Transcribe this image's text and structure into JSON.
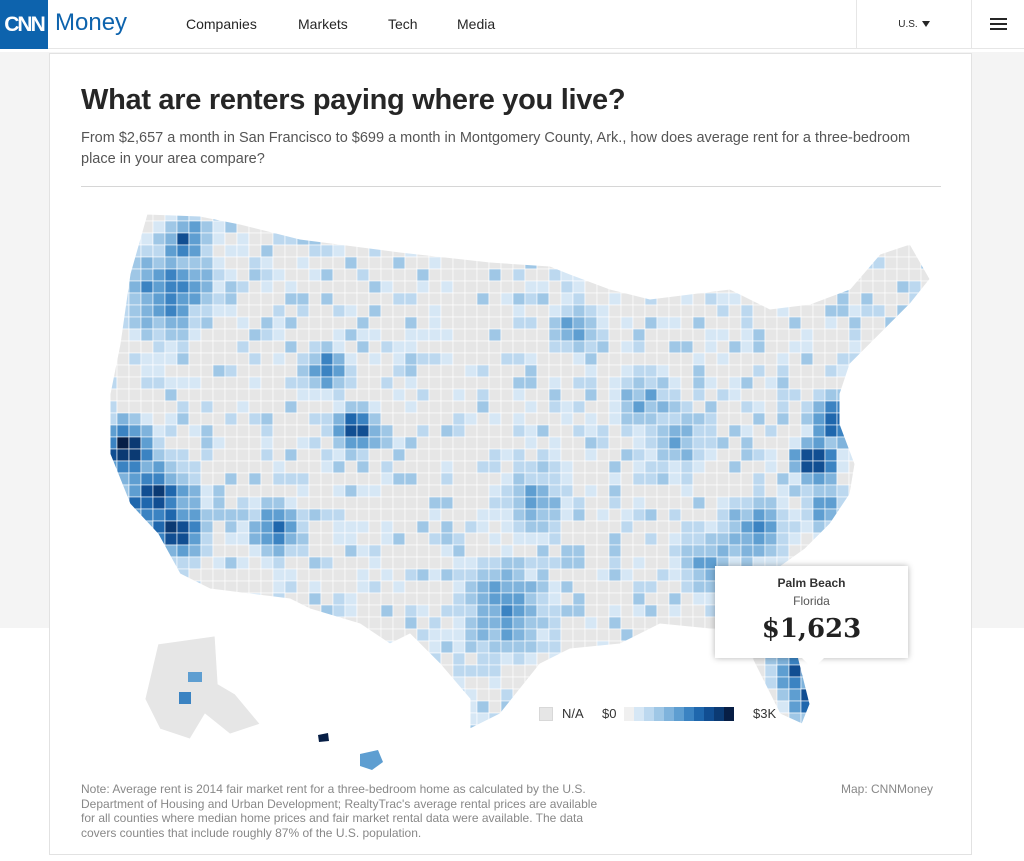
{
  "header": {
    "logo_text": "CNN",
    "brand_word": "Money",
    "nav": [
      "Companies",
      "Markets",
      "Tech",
      "Media"
    ],
    "edition": "U.S.",
    "colors": {
      "brand": "#0d63ad"
    }
  },
  "article": {
    "title": "What are renters paying where you live?",
    "subtitle": "From $2,657 a month in San Francisco to $699 a month in Montgomery County, Ark., how does average rent for a three-bedroom place in your area compare?",
    "note": "Note: Average rent is 2014 fair market rent for a three-bedroom home as calculated by the U.S. Department of Housing and Urban Development; RealtyTrac's average rental prices are available for all counties where median home prices and fair market rental data were available. The data covers counties that include roughly 87% of the U.S. population.",
    "credit": "Map: CNNMoney"
  },
  "map": {
    "type": "choropleth",
    "subject": "U.S. counties, 2014 fair market rent for a three-bedroom home",
    "legend": {
      "na_label": "N/A",
      "low_label": "$0",
      "high_label": "$3K",
      "colors": [
        "#f0f0f0",
        "#d6e7f5",
        "#bcd8ef",
        "#9fc7e6",
        "#7fb3dc",
        "#5e9ed1",
        "#3b83c2",
        "#1f67ad",
        "#114e92",
        "#0b3a73",
        "#071e45"
      ]
    },
    "na_color": "#e6e6e6",
    "tooltip": {
      "county": "Palm Beach",
      "state": "Florida",
      "value": "$1,623"
    }
  }
}
